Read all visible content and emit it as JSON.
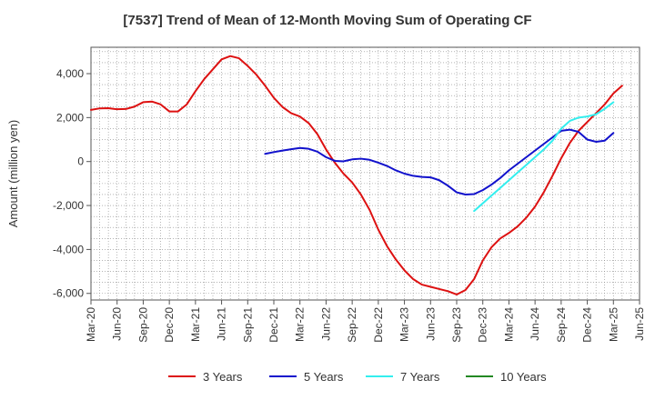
{
  "chart_data": {
    "type": "line",
    "title": "[7537]  Trend of Mean of 12-Month Moving Sum of Operating CF",
    "xlabel": "",
    "ylabel": "Amount (million yen)",
    "ylim": [
      -6300,
      5200
    ],
    "yticks": [
      4000,
      2000,
      0,
      -2000,
      -4000,
      -6000
    ],
    "ytick_labels": [
      "4,000",
      "2,000",
      "0",
      "-2,000",
      "-4,000",
      "-6,000"
    ],
    "x_months_total": 63,
    "xtick_labels": [
      "Mar-20",
      "Jun-20",
      "Sep-20",
      "Dec-20",
      "Mar-21",
      "Jun-21",
      "Sep-21",
      "Dec-21",
      "Mar-22",
      "Jun-22",
      "Sep-22",
      "Dec-22",
      "Mar-23",
      "Jun-23",
      "Sep-23",
      "Dec-23",
      "Mar-24",
      "Jun-24",
      "Sep-24",
      "Dec-24",
      "Mar-25",
      "Jun-25"
    ],
    "grid": true,
    "legend_position": "bottom",
    "series": [
      {
        "name": "3 Years",
        "color": "#dd1111",
        "start_index": 0,
        "values": [
          2350,
          2420,
          2430,
          2380,
          2390,
          2500,
          2700,
          2730,
          2600,
          2280,
          2280,
          2600,
          3200,
          3750,
          4200,
          4650,
          4800,
          4700,
          4350,
          3950,
          3450,
          2900,
          2480,
          2200,
          2050,
          1750,
          1250,
          550,
          -50,
          -550,
          -950,
          -1500,
          -2200,
          -3100,
          -3850,
          -4450,
          -4950,
          -5350,
          -5600,
          -5700,
          -5800,
          -5900,
          -6050,
          -5850,
          -5350,
          -4500,
          -3900,
          -3500,
          -3250,
          -2950,
          -2550,
          -2050,
          -1400,
          -650,
          150,
          850,
          1400,
          1800,
          2200,
          2600,
          3100,
          3450
        ]
      },
      {
        "name": "5 Years",
        "color": "#1111cc",
        "start_index": 20,
        "values": [
          350,
          430,
          500,
          560,
          620,
          580,
          450,
          200,
          30,
          10,
          100,
          130,
          80,
          -50,
          -200,
          -400,
          -550,
          -650,
          -700,
          -720,
          -850,
          -1100,
          -1400,
          -1500,
          -1480,
          -1300,
          -1050,
          -750,
          -400,
          -100,
          200,
          500,
          800,
          1100,
          1400,
          1450,
          1350,
          1000,
          900,
          950,
          1300
        ]
      },
      {
        "name": "7 Years",
        "color": "#33eeee",
        "start_index": 44,
        "values": [
          -2250,
          -1900,
          -1550,
          -1200,
          -850,
          -500,
          -150,
          200,
          550,
          950,
          1500,
          1850,
          2000,
          2050,
          2150,
          2400,
          2700
        ]
      },
      {
        "name": "10 Years",
        "color": "#228822",
        "start_index": 0,
        "values": []
      }
    ]
  }
}
